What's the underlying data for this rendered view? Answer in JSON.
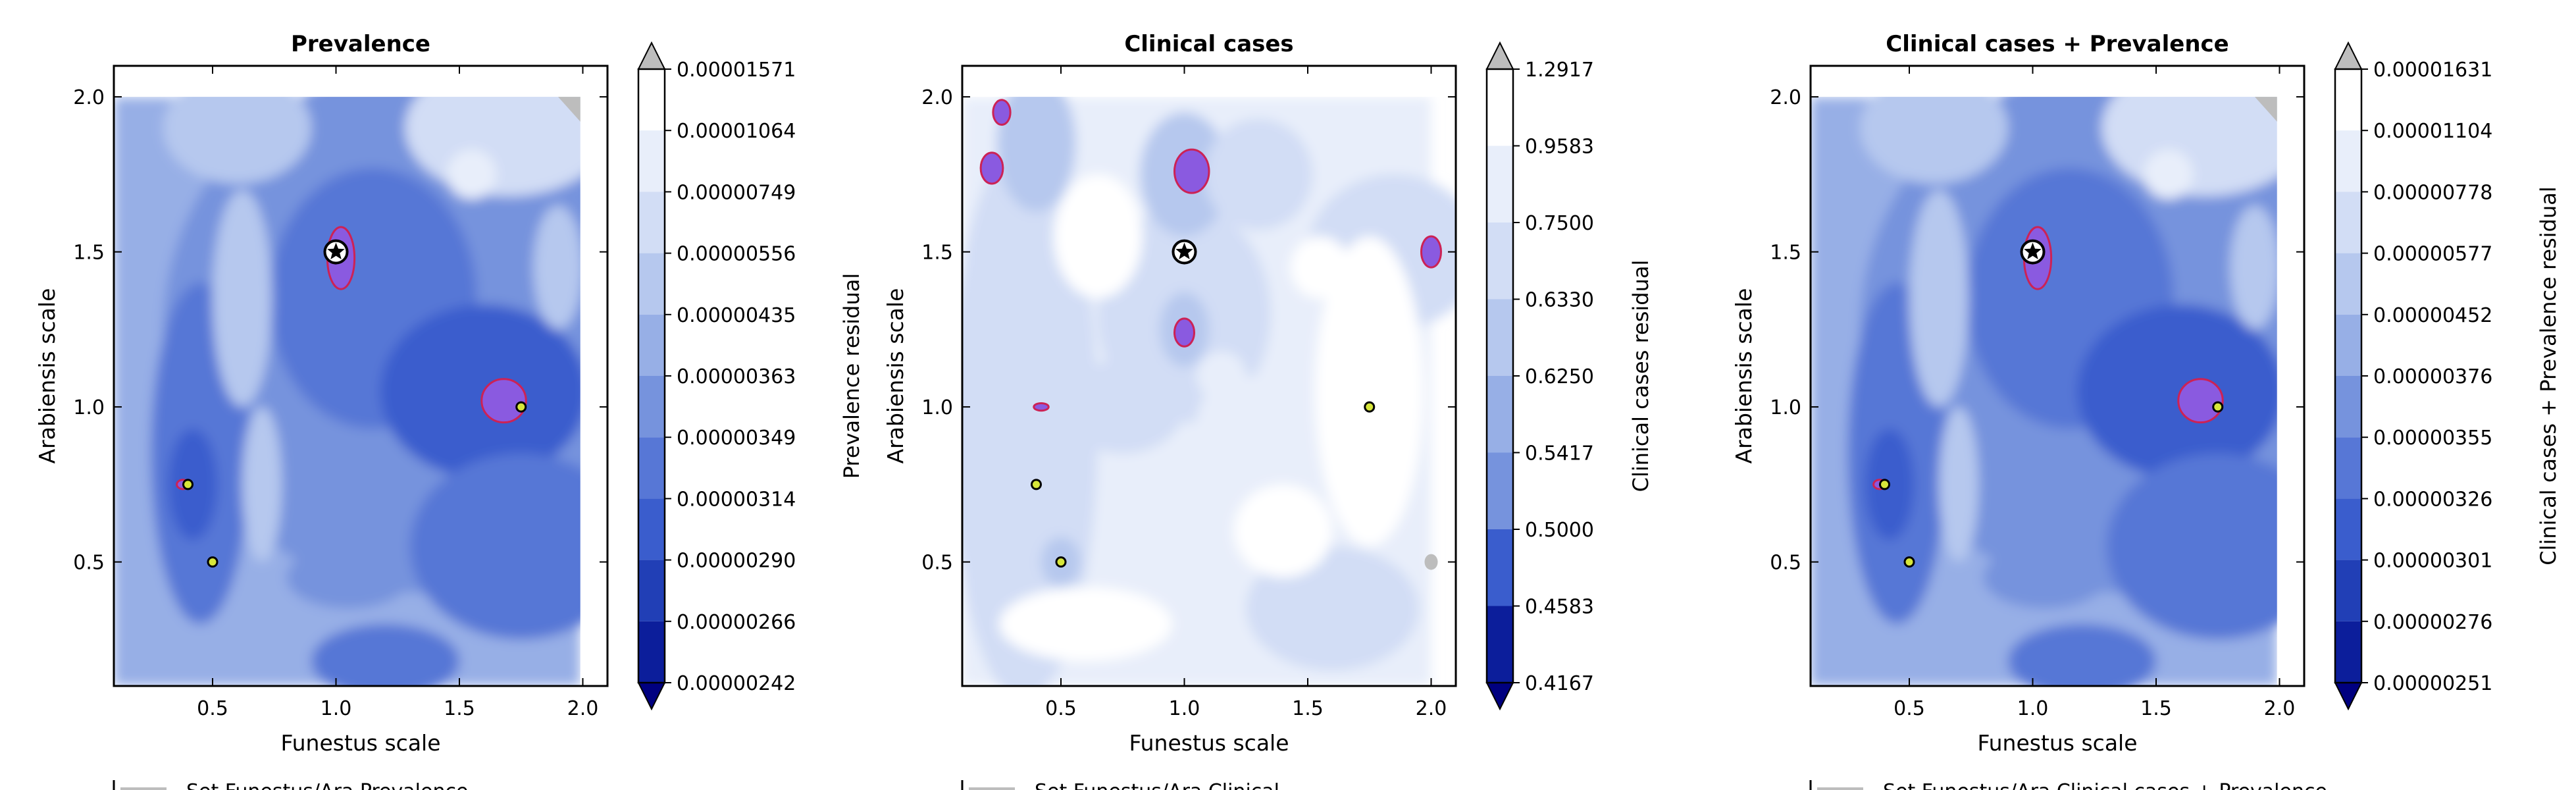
{
  "chart_data": [
    {
      "type": "heatmap",
      "title": "Prevalence",
      "xlabel": "Funestus scale",
      "ylabel": "Arabiensis scale",
      "xlim": [
        0.1,
        2.1
      ],
      "ylim": [
        0.1,
        2.1
      ],
      "x_ticks": [
        "0.5",
        "1.0",
        "1.5",
        "2.0"
      ],
      "y_ticks": [
        "0.5",
        "1.0",
        "1.5",
        "2.0"
      ],
      "colorbar_label": "Prevalence residual",
      "colorbar_ticks": [
        "0.00001571",
        "0.00001064",
        "0.00000749",
        "0.00000556",
        "0.00000435",
        "0.00000363",
        "0.00000349",
        "0.00000314",
        "0.00000290",
        "0.00000266",
        "0.00000242"
      ],
      "markers": [
        {
          "kind": "star",
          "x": 1.0,
          "y": 1.5
        },
        {
          "kind": "dot",
          "x": 1.75,
          "y": 1.0
        },
        {
          "kind": "dot",
          "x": 0.4,
          "y": 0.75
        },
        {
          "kind": "dot",
          "x": 0.5,
          "y": 0.5
        }
      ],
      "legend_text": "Set Funestus/Ara Prevalence"
    },
    {
      "type": "heatmap",
      "title": "Clinical cases",
      "xlabel": "Funestus scale",
      "ylabel": "Arabiensis scale",
      "xlim": [
        0.1,
        2.1
      ],
      "ylim": [
        0.1,
        2.1
      ],
      "x_ticks": [
        "0.5",
        "1.0",
        "1.5",
        "2.0"
      ],
      "y_ticks": [
        "0.5",
        "1.0",
        "1.5",
        "2.0"
      ],
      "colorbar_label": "Clinical cases residual",
      "colorbar_ticks": [
        "1.2917",
        "0.9583",
        "0.7500",
        "0.6330",
        "0.6250",
        "0.5417",
        "0.5000",
        "0.4583",
        "0.4167"
      ],
      "markers": [
        {
          "kind": "star",
          "x": 1.0,
          "y": 1.5
        },
        {
          "kind": "dot",
          "x": 1.75,
          "y": 1.0
        },
        {
          "kind": "dot",
          "x": 0.4,
          "y": 0.75
        },
        {
          "kind": "dot",
          "x": 0.5,
          "y": 0.5
        }
      ],
      "legend_text": "Set Funestus/Ara Clinical"
    },
    {
      "type": "heatmap",
      "title": "Clinical cases + Prevalence",
      "xlabel": "Funestus scale",
      "ylabel": "Arabiensis scale",
      "xlim": [
        0.1,
        2.1
      ],
      "ylim": [
        0.1,
        2.1
      ],
      "x_ticks": [
        "0.5",
        "1.0",
        "1.5",
        "2.0"
      ],
      "y_ticks": [
        "0.5",
        "1.0",
        "1.5",
        "2.0"
      ],
      "colorbar_label": "Clinical cases + Prevalence residual",
      "colorbar_ticks": [
        "0.00001631",
        "0.00001104",
        "0.00000778",
        "0.00000577",
        "0.00000452",
        "0.00000376",
        "0.00000355",
        "0.00000326",
        "0.00000301",
        "0.00000276",
        "0.00000251"
      ],
      "markers": [
        {
          "kind": "star",
          "x": 1.0,
          "y": 1.5
        },
        {
          "kind": "dot",
          "x": 1.75,
          "y": 1.0
        },
        {
          "kind": "dot",
          "x": 0.4,
          "y": 0.75
        },
        {
          "kind": "dot",
          "x": 0.5,
          "y": 0.5
        }
      ],
      "legend_text": "Set Funestus/Ara Clinical cases + Prevalence"
    }
  ],
  "colors": {
    "levels": [
      "#000080",
      "#0c1e9b",
      "#213fb6",
      "#3a5dcd",
      "#5777d6",
      "#7693dd",
      "#97afe6",
      "#b6c8ee",
      "#d2ddf5",
      "#e8eefa",
      "#ffffff"
    ],
    "over": "#bdbdbd",
    "hotspot_fill": "#8a5ae0",
    "hotspot_edge": "#cc2255",
    "marker_fill": "#d7e63a",
    "axis": "#000000"
  }
}
